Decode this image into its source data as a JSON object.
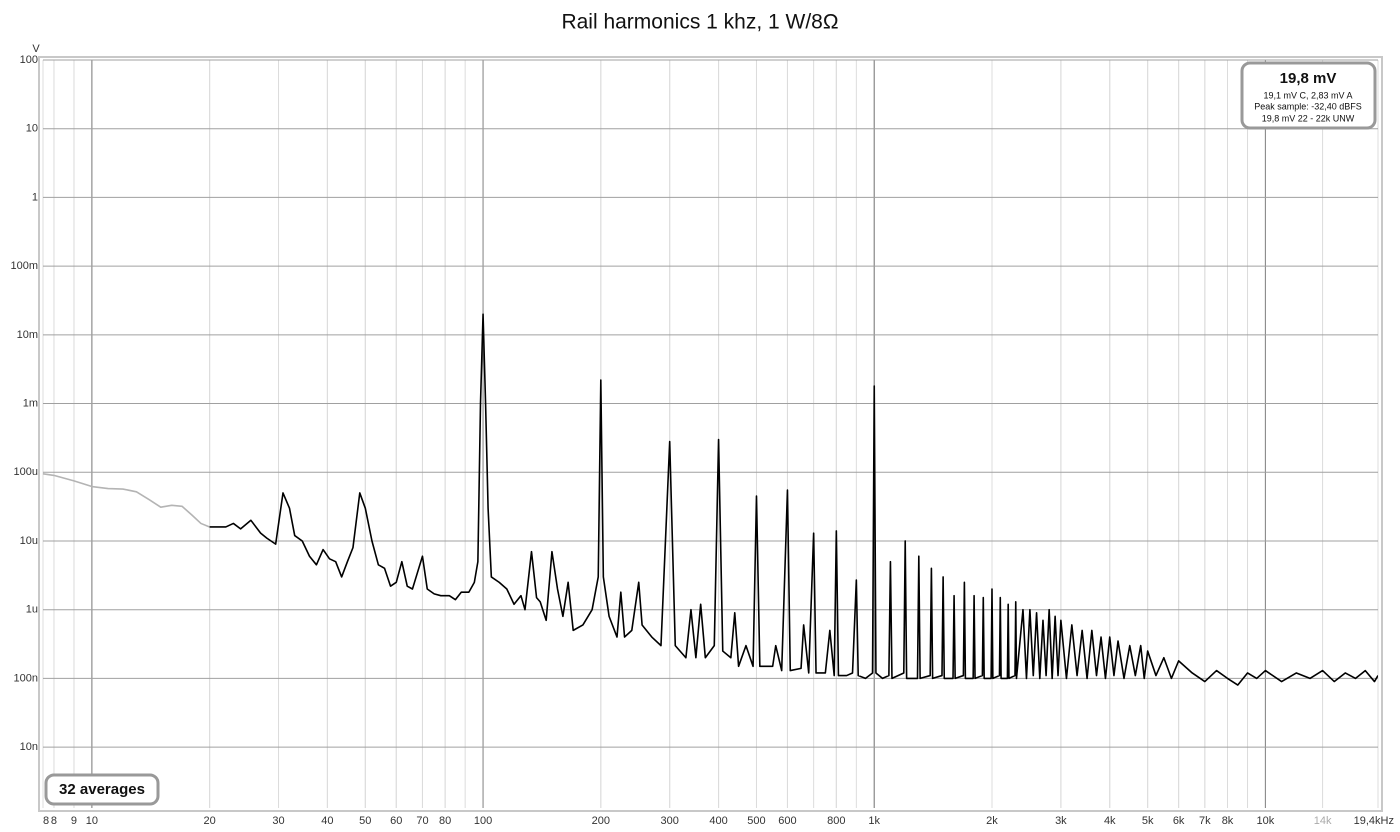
{
  "chart_data": {
    "type": "line",
    "title": "Rail harmonics 1 khz, 1 W/8Ω",
    "y_unit": "V",
    "log_x": true,
    "log_y": true,
    "grid": true,
    "minor_grid": true,
    "xlim": [
      7.5,
      19400
    ],
    "ylim": [
      1.3e-09,
      100
    ],
    "xticks": [
      {
        "value": 7.5,
        "label": "8"
      },
      8,
      9,
      10,
      20,
      30,
      40,
      50,
      60,
      70,
      80,
      100,
      200,
      300,
      400,
      500,
      600,
      800,
      {
        "value": 1000,
        "label": "1k"
      },
      {
        "value": 2000,
        "label": "2k"
      },
      {
        "value": 3000,
        "label": "3k"
      },
      {
        "value": 4000,
        "label": "4k"
      },
      {
        "value": 5000,
        "label": "5k"
      },
      {
        "value": 6000,
        "label": "6k"
      },
      {
        "value": 7000,
        "label": "7k"
      },
      {
        "value": 8000,
        "label": "8k"
      },
      {
        "value": 10000,
        "label": "10k"
      },
      {
        "value": 14000,
        "label": "14k",
        "color": "#aaaaaa"
      },
      {
        "value": 19400,
        "label": "19,4kHz"
      }
    ],
    "yticks": [
      100,
      10,
      1,
      {
        "value": 0.1,
        "label": "100m"
      },
      {
        "value": 0.01,
        "label": "10m"
      },
      {
        "value": 0.001,
        "label": "1m"
      },
      {
        "value": 0.0001,
        "label": "100u"
      },
      {
        "value": 1e-05,
        "label": "10u"
      },
      {
        "value": 1e-06,
        "label": "1u"
      },
      {
        "value": 1e-07,
        "label": "100n"
      },
      {
        "value": 1e-08,
        "label": "10n"
      }
    ],
    "series": [
      {
        "color": "#b4b4b4",
        "x": [
          7.5,
          8,
          9,
          10,
          11,
          12,
          13,
          14,
          15,
          16,
          17,
          18,
          19,
          20
        ],
        "values": [
          9.5e-05,
          9e-05,
          7.5e-05,
          6.2e-05,
          5.8e-05,
          5.7e-05,
          5.2e-05,
          4e-05,
          3.1e-05,
          3.3e-05,
          3.2e-05,
          2.4e-05,
          1.8e-05,
          1.6e-05
        ]
      },
      {
        "color": "#000000",
        "x": [
          20,
          22,
          23,
          24,
          25.5,
          27,
          28,
          29.5,
          30.8,
          32,
          33,
          34.5,
          36,
          37.5,
          39,
          40.5,
          42,
          43.5,
          45,
          46.5,
          48.4,
          50,
          52,
          54,
          56,
          58,
          60,
          62,
          64,
          66,
          68,
          70,
          72,
          75,
          78,
          82,
          85,
          88,
          92,
          95,
          97,
          98.5,
          100,
          101.5,
          103,
          105,
          110,
          115,
          120,
          125,
          128,
          133,
          137,
          140,
          145,
          150,
          155,
          160,
          165,
          170,
          180,
          190,
          197,
          200,
          203,
          210,
          220,
          225,
          230,
          240,
          250,
          255,
          270,
          285,
          300,
          310,
          330,
          340,
          350,
          360,
          370,
          390,
          400,
          410,
          430,
          440,
          450,
          470,
          490,
          500,
          510,
          550,
          560,
          580,
          600,
          610,
          650,
          660,
          680,
          700,
          710,
          750,
          770,
          790,
          800,
          810,
          850,
          880,
          900,
          910,
          950,
          990,
          1000,
          1010,
          1050,
          1090,
          1100,
          1110,
          1190,
          1200,
          1210,
          1290,
          1300,
          1310,
          1390,
          1400,
          1410,
          1490,
          1500,
          1510,
          1590,
          1600,
          1610,
          1690,
          1700,
          1710,
          1790,
          1800,
          1810,
          1890,
          1900,
          1910,
          1990,
          2000,
          2010,
          2090,
          2100,
          2110,
          2190,
          2200,
          2210,
          2290,
          2300,
          2310,
          2400,
          2450,
          2500,
          2550,
          2600,
          2650,
          2700,
          2750,
          2800,
          2850,
          2900,
          2950,
          3000,
          3100,
          3200,
          3300,
          3400,
          3500,
          3600,
          3700,
          3800,
          3900,
          4000,
          4100,
          4200,
          4350,
          4500,
          4650,
          4800,
          4900,
          5000,
          5250,
          5500,
          5750,
          6000,
          6500,
          7000,
          7500,
          8000,
          8500,
          9000,
          9500,
          10000,
          11000,
          12000,
          13000,
          14000,
          15000,
          16000,
          17000,
          18000,
          19000,
          19400
        ],
        "values": [
          1.6e-05,
          1.6e-05,
          1.8e-05,
          1.5e-05,
          2e-05,
          1.3e-05,
          1.1e-05,
          9e-06,
          5e-05,
          3e-05,
          1.2e-05,
          1e-05,
          6e-06,
          4.5e-06,
          7.5e-06,
          5.5e-06,
          5e-06,
          3e-06,
          5e-06,
          8e-06,
          5e-05,
          3e-05,
          1e-05,
          4.5e-06,
          4e-06,
          2.2e-06,
          2.5e-06,
          5e-06,
          2.2e-06,
          2e-06,
          3.5e-06,
          6e-06,
          2e-06,
          1.7e-06,
          1.6e-06,
          1.6e-06,
          1.4e-06,
          1.8e-06,
          1.8e-06,
          2.5e-06,
          5e-06,
          0.001,
          0.02,
          0.001,
          3e-05,
          3e-06,
          2.5e-06,
          2e-06,
          1.2e-06,
          1.6e-06,
          1e-06,
          7e-06,
          1.5e-06,
          1.3e-06,
          7e-07,
          7e-06,
          2e-06,
          8e-07,
          2.5e-06,
          5e-07,
          6e-07,
          1e-06,
          3e-06,
          0.0022,
          3e-06,
          8e-07,
          4e-07,
          1.8e-06,
          4e-07,
          5e-07,
          2.5e-06,
          6e-07,
          4e-07,
          3e-07,
          0.00028,
          3e-07,
          2e-07,
          1e-06,
          2e-07,
          1.2e-06,
          2e-07,
          3e-07,
          0.0003,
          2.5e-07,
          2e-07,
          9e-07,
          1.5e-07,
          3e-07,
          1.5e-07,
          4.5e-05,
          1.5e-07,
          1.5e-07,
          3e-07,
          1.3e-07,
          5.5e-05,
          1.3e-07,
          1.4e-07,
          6e-07,
          1.2e-07,
          1.3e-05,
          1.2e-07,
          1.2e-07,
          5e-07,
          1.1e-07,
          1.4e-05,
          1.1e-07,
          1.1e-07,
          1.2e-07,
          2.7e-06,
          1.1e-07,
          1e-07,
          1.2e-07,
          0.0018,
          1.2e-07,
          1e-07,
          1.1e-07,
          5e-06,
          1e-07,
          1.2e-07,
          1e-05,
          1e-07,
          1e-07,
          6e-06,
          1e-07,
          1.1e-07,
          4e-06,
          1e-07,
          1.1e-07,
          3e-06,
          1e-07,
          1e-07,
          1.6e-06,
          1e-07,
          1.1e-07,
          2.5e-06,
          1e-07,
          1e-07,
          1.6e-06,
          1e-07,
          1.1e-07,
          1.5e-06,
          1e-07,
          1e-07,
          2e-06,
          1e-07,
          1.1e-07,
          1.5e-06,
          1e-07,
          1e-07,
          1.2e-06,
          1e-07,
          1.1e-07,
          1.3e-06,
          1e-07,
          1e-06,
          1e-07,
          1e-06,
          1.1e-07,
          9e-07,
          1e-07,
          7e-07,
          1.1e-07,
          1e-06,
          1e-07,
          8e-07,
          1.1e-07,
          7e-07,
          1e-07,
          6e-07,
          1.1e-07,
          5e-07,
          1e-07,
          5e-07,
          1.1e-07,
          4e-07,
          1e-07,
          4e-07,
          1.1e-07,
          3.5e-07,
          1e-07,
          3e-07,
          1.1e-07,
          3e-07,
          1e-07,
          2.5e-07,
          1.1e-07,
          2e-07,
          1e-07,
          1.8e-07,
          1.2e-07,
          9e-08,
          1.3e-07,
          1e-07,
          8e-08,
          1.2e-07,
          1e-07,
          1.3e-07,
          9e-08,
          1.2e-07,
          1e-07,
          1.3e-07,
          9e-08,
          1.2e-07,
          1e-07,
          1.3e-07,
          9e-08,
          1.1e-07
        ]
      }
    ],
    "info_box": {
      "headline": "19,8 mV",
      "lines": [
        "19,1 mV C, 2,83 mV A",
        "Peak sample: -32,40 dBFS",
        "19,8 mV 22 - 22k UNW"
      ]
    },
    "averages": "32 averages"
  }
}
